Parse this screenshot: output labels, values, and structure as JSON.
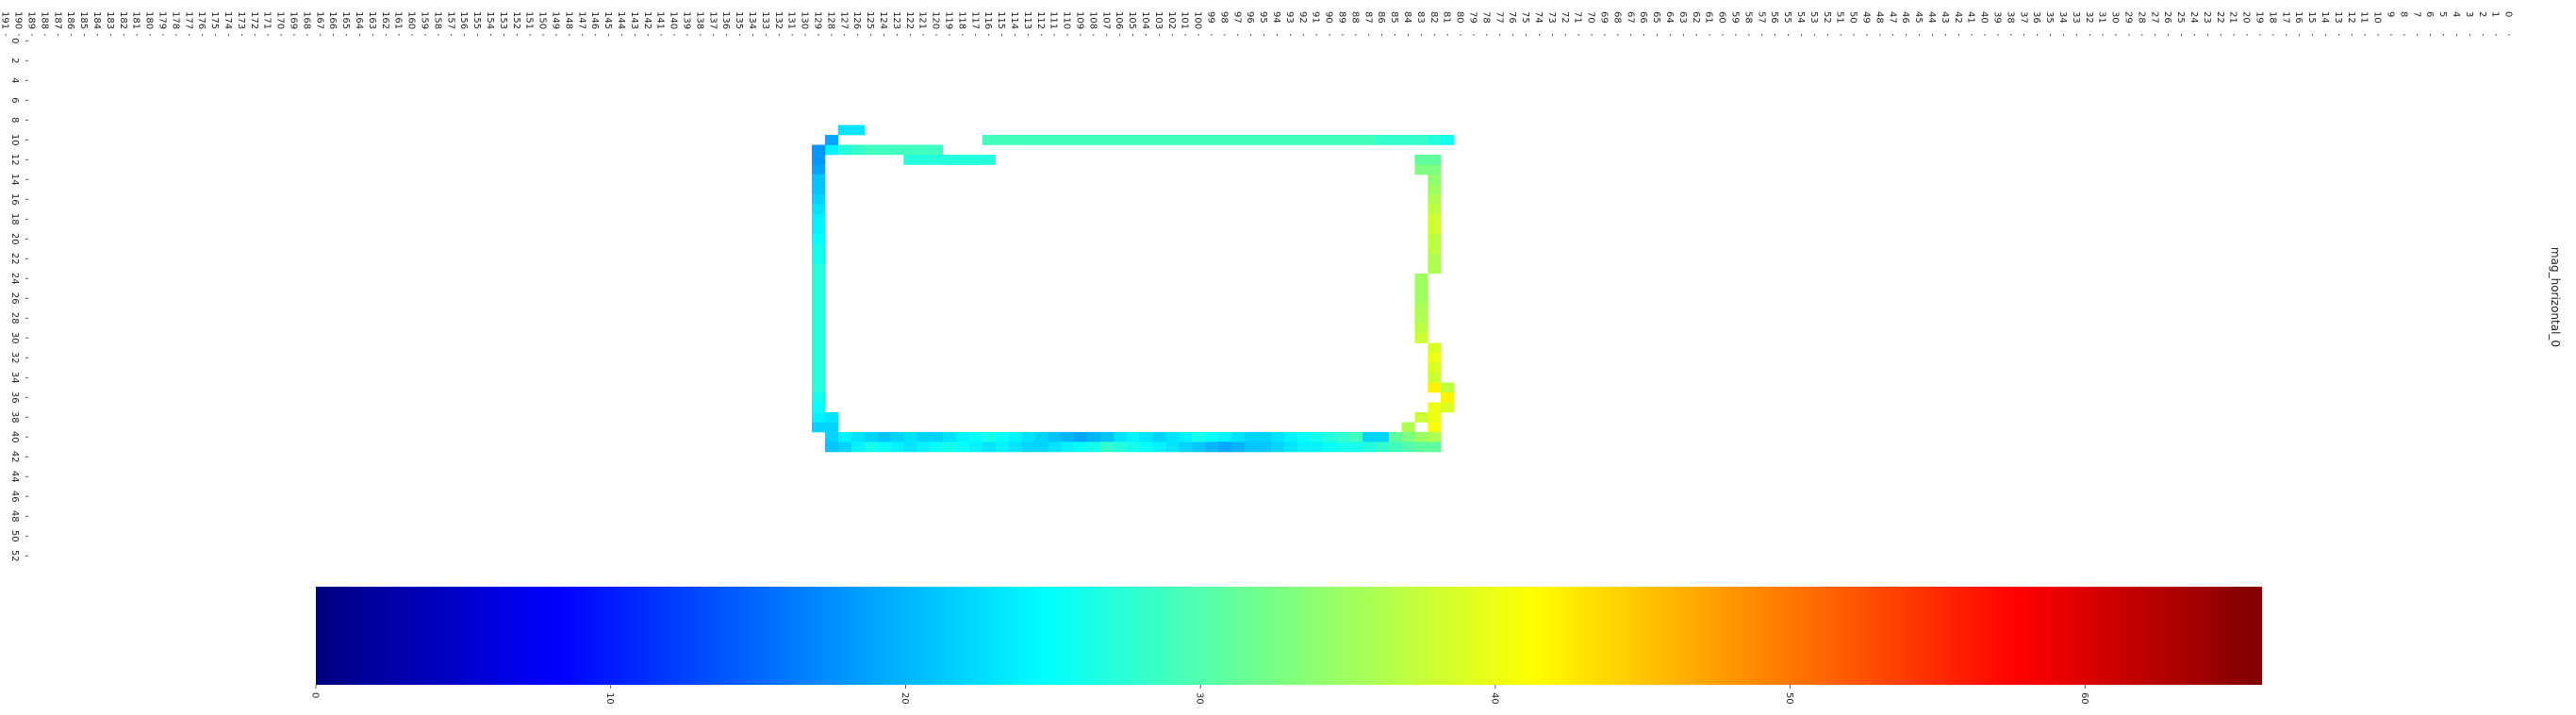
{
  "chart_data": {
    "type": "heatmap",
    "title": "",
    "xlabel": "",
    "ylabel": "mag_horizontal_0",
    "orientation": "rotated-90-clockwise",
    "grid": false,
    "legend": "colorbar-bottom",
    "colormap": "jet",
    "colormap_colors": [
      "#00007f",
      "#0000ff",
      "#007fff",
      "#00ffff",
      "#7fff7f",
      "#ffff00",
      "#ff7f00",
      "#ff0000",
      "#7f0000"
    ],
    "value_range": [
      0,
      66
    ],
    "colorbar_ticks": [
      0,
      10,
      20,
      30,
      40,
      50,
      60
    ],
    "grid_shape": {
      "rows": 194,
      "cols": 54
    },
    "row_tick_labels": [
      "0",
      "1",
      "2",
      "3",
      "4",
      "5",
      "6",
      "7",
      "8",
      "9",
      "10",
      "11",
      "12",
      "13",
      "14",
      "15",
      "16",
      "17",
      "18",
      "19",
      "20",
      "21",
      "22",
      "23",
      "24",
      "25",
      "26",
      "27",
      "28",
      "29",
      "30",
      "31",
      "32",
      "33",
      "34",
      "35",
      "36",
      "37",
      "38",
      "39",
      "40",
      "41",
      "42",
      "43",
      "44",
      "45",
      "46",
      "47",
      "48",
      "49",
      "50",
      "51",
      "52",
      "53",
      "54",
      "55",
      "56",
      "57",
      "58",
      "59",
      "60",
      "61",
      "62",
      "63",
      "64",
      "65",
      "66",
      "67",
      "68",
      "69",
      "70",
      "71",
      "72",
      "73",
      "74",
      "75",
      "76",
      "77",
      "78",
      "79",
      "80",
      "81",
      "82",
      "83",
      "84",
      "85",
      "86",
      "87",
      "88",
      "89",
      "90",
      "91",
      "92",
      "93",
      "94",
      "95",
      "96",
      "97",
      "98",
      "99",
      "100",
      "101",
      "102",
      "103",
      "104",
      "105",
      "106",
      "107",
      "108",
      "109",
      "110",
      "111",
      "112",
      "113",
      "114",
      "115",
      "116",
      "117",
      "118",
      "119",
      "120",
      "121",
      "122",
      "123",
      "124",
      "125",
      "126",
      "127",
      "128",
      "129",
      "130",
      "131",
      "132",
      "133",
      "134",
      "135",
      "136",
      "137",
      "138",
      "139",
      "140",
      "141",
      "142",
      "143",
      "144",
      "145",
      "146",
      "147",
      "148",
      "149",
      "150",
      "151",
      "152",
      "153",
      "154",
      "155",
      "156",
      "157",
      "158",
      "159",
      "160",
      "161",
      "162",
      "163",
      "164",
      "165",
      "166",
      "167",
      "168",
      "169",
      "170",
      "171",
      "172",
      "173",
      "174",
      "175",
      "176",
      "177",
      "178",
      "179",
      "180",
      "181",
      "182",
      "183",
      "184",
      "185",
      "186",
      "187",
      "188",
      "189",
      "190",
      "191",
      "192",
      "193"
    ],
    "col_tick_labels": [
      "0",
      "2",
      "4",
      "6",
      "8",
      "10",
      "12",
      "14",
      "16",
      "18",
      "20",
      "22",
      "24",
      "26",
      "28",
      "30",
      "32",
      "34",
      "36",
      "38",
      "40",
      "42",
      "44",
      "46",
      "48",
      "50",
      "52"
    ],
    "outline_cells": {
      "right_side_col": 10,
      "right_side_rows": [
        [
          81,
          85
        ],
        [
          85,
          87
        ],
        [
          87,
          97
        ],
        [
          97,
          116
        ],
        [
          116,
          121
        ],
        [
          121,
          127
        ]
      ],
      "right_side_row_values": [
        35,
        29,
        33,
        32,
        35,
        31
      ],
      "left_side_rows": [
        82,
        130
      ],
      "left_side_cols": [
        11,
        42
      ],
      "left_side_col_values": [
        14,
        15,
        16,
        17,
        18,
        19,
        20,
        21,
        22,
        23,
        24,
        25,
        26,
        27,
        28,
        29,
        30,
        31,
        32,
        33,
        34,
        35,
        36,
        37,
        38,
        39,
        40
      ],
      "left_side_values": [
        19,
        21,
        21,
        22,
        23,
        24,
        24,
        25,
        26,
        26,
        27,
        27,
        27,
        27,
        27,
        27,
        27,
        27,
        27,
        27,
        27,
        27,
        27,
        26,
        25,
        24,
        22
      ],
      "bottom_rows": [
        82,
        128
      ],
      "bottom_row_values_inner": [
        22,
        25,
        23,
        22,
        24,
        20,
        18,
        22,
        24,
        22,
        20,
        24,
        26,
        22,
        20,
        24,
        26,
        24,
        22,
        24
      ],
      "bottom_row_values_outer": [
        29,
        28,
        27,
        26,
        25,
        24,
        25,
        26,
        27,
        28,
        26,
        25,
        24,
        23,
        22,
        24,
        25,
        26,
        27,
        28
      ],
      "right_edge_rows": [
        82,
        88
      ],
      "right_edge_cols": [
        12,
        40
      ],
      "right_edge_values": [
        31,
        33,
        34,
        35,
        36,
        37,
        38,
        38,
        37,
        37,
        36,
        36,
        35,
        35,
        35,
        36,
        36,
        37,
        38,
        39,
        40,
        39,
        38,
        37,
        38,
        39,
        40,
        41,
        42
      ]
    }
  }
}
